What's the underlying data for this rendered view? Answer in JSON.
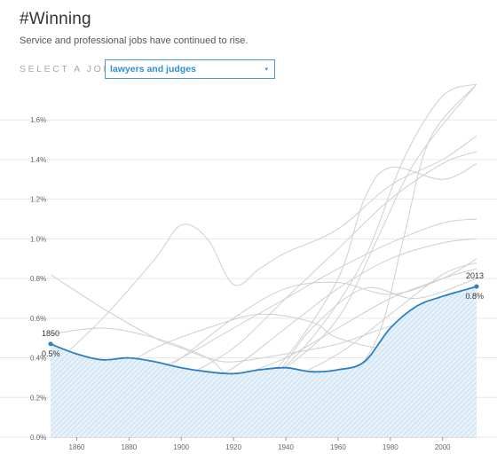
{
  "header": {
    "title": "#Winning",
    "subtitle": "Service and professional jobs have continued to rise."
  },
  "selector": {
    "label": "SELECT A JOB:",
    "value": "lawyers and judges",
    "caret": "▾"
  },
  "colors": {
    "highlight": "#2e7fc1",
    "highlight_fill": "#d8eaf7",
    "background_lines": "#cfcfcf",
    "grid": "#e8e8e8"
  },
  "chart_data": {
    "type": "line",
    "title": "#Winning",
    "xlabel": "",
    "ylabel": "",
    "x_ticks": [
      1860,
      1880,
      1900,
      1920,
      1940,
      1960,
      1980,
      2000
    ],
    "y_ticks": [
      0,
      0.2,
      0.4,
      0.6,
      0.8,
      1.0,
      1.2,
      1.4,
      1.6
    ],
    "y_tick_labels": [
      "0.0%",
      "0.2%",
      "0.4%",
      "0.6%",
      "0.8%",
      "1.0%",
      "1.2%",
      "1.4%",
      "1.6%"
    ],
    "xlim": [
      1850,
      2013
    ],
    "ylim": [
      0,
      1.78
    ],
    "grid": true,
    "highlight": {
      "name": "lawyers and judges",
      "x": [
        1850,
        1860,
        1870,
        1880,
        1890,
        1900,
        1910,
        1920,
        1930,
        1940,
        1950,
        1960,
        1970,
        1980,
        1990,
        2000,
        2013
      ],
      "y": [
        0.47,
        0.42,
        0.39,
        0.4,
        0.38,
        0.35,
        0.33,
        0.32,
        0.34,
        0.35,
        0.33,
        0.34,
        0.38,
        0.55,
        0.66,
        0.71,
        0.76
      ]
    },
    "annotations": [
      {
        "year_label": "1850",
        "value_label": "0.5%",
        "x": 1850,
        "y": 0.47
      },
      {
        "year_label": "2013",
        "value_label": "0.8%",
        "x": 2013,
        "y": 0.76
      }
    ],
    "background_series": [
      {
        "x": [
          1850,
          1870,
          1890,
          1900,
          1910,
          1920,
          1940,
          1960,
          1980,
          2000,
          2013
        ],
        "y": [
          0.82,
          0.65,
          0.5,
          0.45,
          0.4,
          0.38,
          0.42,
          0.47,
          0.56,
          0.62,
          0.66
        ]
      },
      {
        "x": [
          1850,
          1870,
          1890,
          1900,
          1910,
          1920,
          1930,
          1940,
          1960,
          1980,
          2000,
          2013
        ],
        "y": [
          0.35,
          0.6,
          0.9,
          1.07,
          1.0,
          0.77,
          0.85,
          0.93,
          1.05,
          1.27,
          1.4,
          1.52
        ]
      },
      {
        "x": [
          1850,
          1870,
          1890,
          1910,
          1920,
          1940,
          1960,
          1980,
          2000,
          2013
        ],
        "y": [
          0.52,
          0.55,
          0.5,
          0.4,
          0.3,
          0.3,
          0.42,
          0.62,
          0.82,
          0.88
        ]
      },
      {
        "x": [
          1850,
          1870,
          1890,
          1910,
          1930,
          1950,
          1970,
          1985,
          2000,
          2013
        ],
        "y": [
          0.02,
          0.03,
          0.05,
          0.1,
          0.25,
          0.5,
          0.9,
          1.4,
          1.72,
          1.78
        ]
      },
      {
        "x": [
          1850,
          1880,
          1900,
          1920,
          1940,
          1960,
          1975,
          1990,
          2013
        ],
        "y": [
          0.05,
          0.08,
          0.12,
          0.2,
          0.35,
          0.6,
          1.0,
          1.4,
          1.78
        ]
      },
      {
        "x": [
          1850,
          1880,
          1900,
          1920,
          1940,
          1960,
          1980,
          2000,
          2013
        ],
        "y": [
          0.1,
          0.2,
          0.3,
          0.45,
          0.7,
          0.95,
          1.2,
          1.38,
          1.44
        ]
      },
      {
        "x": [
          1850,
          1880,
          1900,
          1920,
          1940,
          1960,
          1970,
          1980,
          2000,
          2013
        ],
        "y": [
          0.03,
          0.05,
          0.08,
          0.15,
          0.4,
          0.8,
          1.2,
          1.36,
          1.3,
          1.38
        ]
      },
      {
        "x": [
          1850,
          1880,
          1900,
          1920,
          1940,
          1960,
          1980,
          2000,
          2013
        ],
        "y": [
          0.12,
          0.22,
          0.4,
          0.6,
          0.75,
          0.78,
          0.72,
          0.8,
          0.9
        ]
      },
      {
        "x": [
          1850,
          1880,
          1900,
          1920,
          1940,
          1960,
          1980,
          2000,
          2013
        ],
        "y": [
          0.15,
          0.28,
          0.4,
          0.55,
          0.7,
          0.85,
          0.98,
          1.08,
          1.1
        ]
      },
      {
        "x": [
          1850,
          1870,
          1890,
          1910,
          1930,
          1950,
          1960,
          1980,
          2000,
          2013
        ],
        "y": [
          0.2,
          0.3,
          0.45,
          0.55,
          0.62,
          0.58,
          0.5,
          0.45,
          0.55,
          0.62
        ]
      },
      {
        "x": [
          1850,
          1880,
          1900,
          1920,
          1940,
          1960,
          1980,
          2000,
          2013
        ],
        "y": [
          0.05,
          0.12,
          0.22,
          0.35,
          0.55,
          0.75,
          0.9,
          0.98,
          1.0
        ]
      },
      {
        "x": [
          1850,
          1880,
          1900,
          1920,
          1940,
          1960,
          1980,
          2000,
          2013
        ],
        "y": [
          0.08,
          0.15,
          0.2,
          0.3,
          0.4,
          0.55,
          0.7,
          0.8,
          0.85
        ]
      },
      {
        "x": [
          1850,
          1880,
          1900,
          1920,
          1940,
          1955,
          1970,
          1990,
          2013
        ],
        "y": [
          0.02,
          0.03,
          0.05,
          0.08,
          0.12,
          0.15,
          0.25,
          0.5,
          0.75
        ]
      },
      {
        "x": [
          1850,
          1880,
          1900,
          1920,
          1940,
          1960,
          1980,
          2000,
          2013
        ],
        "y": [
          0.01,
          0.02,
          0.03,
          0.05,
          0.1,
          0.2,
          0.35,
          0.5,
          0.6
        ]
      },
      {
        "x": [
          1850,
          1880,
          1900,
          1920,
          1935,
          1950,
          1970,
          1990,
          2013
        ],
        "y": [
          0.3,
          0.28,
          0.25,
          0.22,
          0.3,
          0.55,
          0.75,
          0.7,
          0.8
        ]
      },
      {
        "x": [
          1850,
          1880,
          1900,
          1920,
          1940,
          1960,
          1975,
          1985,
          1995,
          2013
        ],
        "y": [
          0.01,
          0.02,
          0.03,
          0.05,
          0.1,
          0.25,
          0.5,
          1.0,
          1.5,
          1.78
        ]
      }
    ]
  }
}
